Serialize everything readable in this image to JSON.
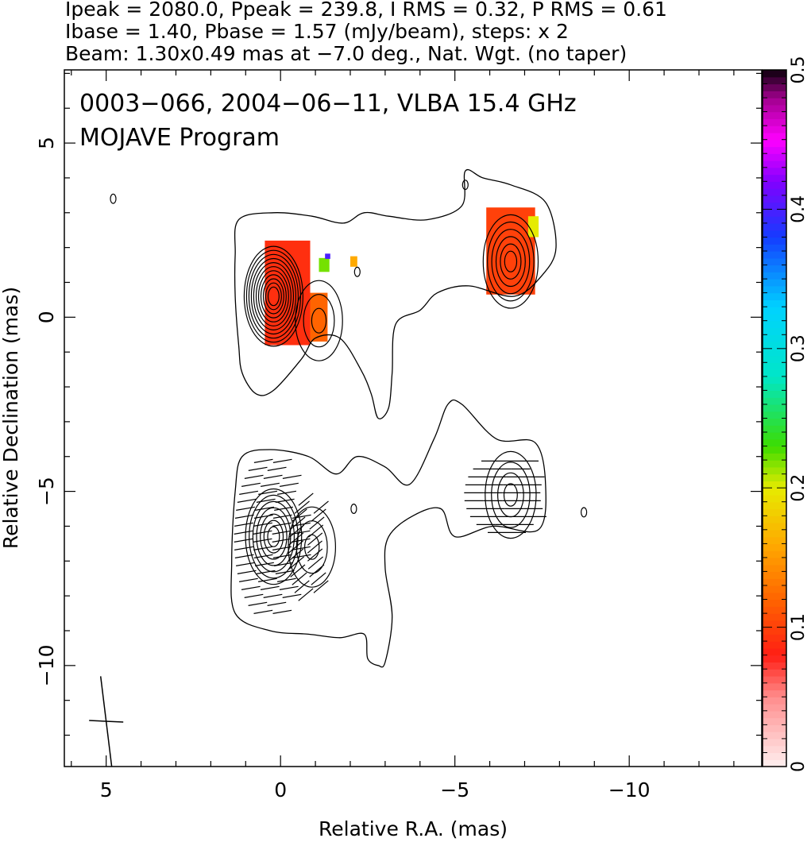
{
  "chart_data": {
    "type": "heatmap",
    "header_lines": [
      "Ipeak = 2080.0, Ppeak = 239.8, I RMS = 0.32, P RMS = 0.61",
      "Ibase = 1.40, Pbase = 1.57 (mJy/beam), steps: x 2",
      "Beam: 1.30x0.49 mas at −7.0 deg., Nat. Wgt. (no taper)"
    ],
    "annotations": [
      "0003−066, 2004−06−11, VLBA 15.4 GHz",
      "MOJAVE Program"
    ],
    "xlabel": "Relative R.A. (mas)",
    "ylabel": "Relative Declination (mas)",
    "xlim": [
      6.2,
      -13.8
    ],
    "ylim": [
      -12.9,
      7.1
    ],
    "x_ticks": [
      {
        "value": 5,
        "label": "5"
      },
      {
        "value": 0,
        "label": "0"
      },
      {
        "value": -5,
        "label": "−5"
      },
      {
        "value": -10,
        "label": "−10"
      }
    ],
    "y_ticks": [
      {
        "value": 5,
        "label": "5"
      },
      {
        "value": 0,
        "label": "0"
      },
      {
        "value": -5,
        "label": "−5"
      },
      {
        "value": -10,
        "label": "−10"
      }
    ],
    "colorbar": {
      "min": 0,
      "max": 0.5,
      "ticks": [
        {
          "value": 0,
          "label": "0"
        },
        {
          "value": 0.1,
          "label": "0.1"
        },
        {
          "value": 0.2,
          "label": "0.2"
        },
        {
          "value": 0.3,
          "label": "0.3"
        },
        {
          "value": 0.4,
          "label": "0.4"
        },
        {
          "value": 0.5,
          "label": "0.5"
        }
      ]
    },
    "beam": {
      "major_mas": 1.3,
      "minor_mas": 0.49,
      "pa_deg": -7.0,
      "x": 5.0,
      "y": -11.6
    },
    "contour_maps": [
      {
        "name": "total intensity with fractional polarization",
        "outer_contour": [
          [
            1.2,
            2.8
          ],
          [
            0.2,
            3.0
          ],
          [
            -0.9,
            2.9
          ],
          [
            -1.8,
            2.7
          ],
          [
            -2.4,
            3.0
          ],
          [
            -3.1,
            2.9
          ],
          [
            -4.2,
            2.8
          ],
          [
            -5.2,
            3.2
          ],
          [
            -5.3,
            4.2
          ],
          [
            -5.8,
            4.0
          ],
          [
            -6.6,
            3.8
          ],
          [
            -7.6,
            3.3
          ],
          [
            -7.9,
            2.0
          ],
          [
            -7.5,
            1.2
          ],
          [
            -6.7,
            0.6
          ],
          [
            -5.4,
            0.9
          ],
          [
            -4.5,
            0.7
          ],
          [
            -4.0,
            0.2
          ],
          [
            -3.3,
            -0.2
          ],
          [
            -3.2,
            -1.6
          ],
          [
            -3.1,
            -2.6
          ],
          [
            -2.8,
            -2.9
          ],
          [
            -2.6,
            -2.2
          ],
          [
            -2.3,
            -1.5
          ],
          [
            -1.7,
            -0.6
          ],
          [
            -1.0,
            -0.6
          ],
          [
            -0.6,
            -1.2
          ],
          [
            0.2,
            -2.1
          ],
          [
            0.7,
            -2.2
          ],
          [
            1.1,
            -1.6
          ],
          [
            1.2,
            -0.8
          ],
          [
            1.3,
            0.6
          ],
          [
            1.3,
            1.8
          ]
        ],
        "peaks": [
          {
            "x": 0.2,
            "y": 0.6,
            "levels": 11
          },
          {
            "x": -1.1,
            "y": -0.1,
            "levels": 3
          },
          {
            "x": -6.6,
            "y": 1.6,
            "levels": 6
          },
          {
            "x": -2.2,
            "y": 1.3,
            "levels": 1
          },
          {
            "x": -5.3,
            "y": 3.8,
            "levels": 1
          },
          {
            "x": 4.8,
            "y": 3.4,
            "levels": 1
          }
        ],
        "polarization_patches": [
          {
            "x": -0.2,
            "y": 0.7,
            "w": 1.3,
            "h": 3.0,
            "frac": 0.09
          },
          {
            "x": -1.1,
            "y": 0.0,
            "w": 0.5,
            "h": 1.4,
            "frac": 0.12
          },
          {
            "x": -1.25,
            "y": 1.5,
            "w": 0.3,
            "h": 0.4,
            "frac": 0.22
          },
          {
            "x": -1.35,
            "y": 1.75,
            "w": 0.15,
            "h": 0.15,
            "frac": 0.4
          },
          {
            "x": -2.1,
            "y": 1.6,
            "w": 0.2,
            "h": 0.3,
            "frac": 0.16
          },
          {
            "x": -6.6,
            "y": 1.9,
            "w": 1.4,
            "h": 2.5,
            "frac": 0.1
          },
          {
            "x": -7.25,
            "y": 2.6,
            "w": 0.3,
            "h": 0.6,
            "frac": 0.2
          }
        ]
      },
      {
        "name": "polarized intensity with EVPA vectors",
        "outer_contour": [
          [
            1.1,
            -4.0
          ],
          [
            0.3,
            -3.8
          ],
          [
            -0.8,
            -4.0
          ],
          [
            -1.6,
            -4.5
          ],
          [
            -2.2,
            -4.0
          ],
          [
            -3.0,
            -4.3
          ],
          [
            -3.7,
            -4.8
          ],
          [
            -4.4,
            -3.5
          ],
          [
            -4.8,
            -2.5
          ],
          [
            -5.2,
            -2.5
          ],
          [
            -6.2,
            -3.5
          ],
          [
            -7.3,
            -3.6
          ],
          [
            -7.6,
            -4.8
          ],
          [
            -7.4,
            -6.1
          ],
          [
            -6.1,
            -6.0
          ],
          [
            -5.0,
            -6.3
          ],
          [
            -4.6,
            -5.5
          ],
          [
            -3.8,
            -5.7
          ],
          [
            -3.1,
            -6.3
          ],
          [
            -3.0,
            -7.2
          ],
          [
            -3.2,
            -8.6
          ],
          [
            -3.0,
            -9.9
          ],
          [
            -2.8,
            -10.0
          ],
          [
            -2.5,
            -9.8
          ],
          [
            -2.4,
            -9.1
          ],
          [
            -1.7,
            -9.2
          ],
          [
            -0.8,
            -9.1
          ],
          [
            0.3,
            -9.0
          ],
          [
            1.3,
            -8.5
          ],
          [
            1.4,
            -7.0
          ],
          [
            1.3,
            -5.0
          ]
        ],
        "peaks": [
          {
            "x": 0.2,
            "y": -6.3,
            "levels": 7
          },
          {
            "x": -0.9,
            "y": -6.6,
            "levels": 3
          },
          {
            "x": -6.6,
            "y": -5.1,
            "levels": 4
          },
          {
            "x": -2.1,
            "y": -5.5,
            "levels": 1
          },
          {
            "x": -8.7,
            "y": -5.6,
            "levels": 1
          }
        ],
        "evpa_regions": [
          {
            "x": 0.2,
            "y": -6.3,
            "rx": 1.0,
            "ry": 2.4,
            "angle_deg": 10
          },
          {
            "x": -0.9,
            "y": -6.6,
            "rx": 0.6,
            "ry": 1.6,
            "angle_deg": 40
          },
          {
            "x": -6.6,
            "y": -5.1,
            "rx": 1.2,
            "ry": 1.2,
            "angle_deg": 0
          }
        ]
      }
    ]
  }
}
